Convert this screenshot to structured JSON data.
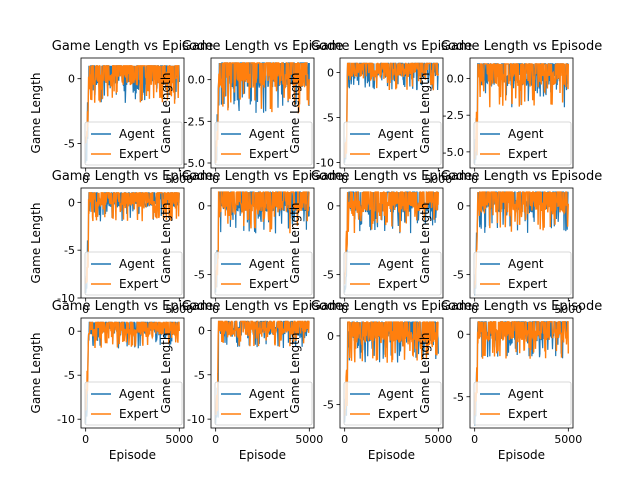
{
  "colors": {
    "agent": "#1f77b4",
    "expert": "#ff7f0e",
    "frame": "#000000",
    "background": "#ffffff"
  },
  "chart_data": [
    {
      "type": "line",
      "title": "Game Length vs Episode",
      "xlabel": "",
      "ylabel": "Game Length",
      "xlim": [
        -250,
        5250
      ],
      "ylim": [
        -6.9,
        1.6
      ],
      "xticks": [
        0,
        5000
      ],
      "yticks": [
        0,
        -5
      ],
      "series": [
        {
          "name": "Agent",
          "role": "agent",
          "y_min": -6.5,
          "y_max": 1,
          "x_range": [
            0,
            5000
          ]
        },
        {
          "name": "Expert",
          "role": "expert",
          "y_min": -5.0,
          "y_max": 1,
          "x_range": [
            0,
            5000
          ]
        }
      ],
      "legend": "lower-right"
    },
    {
      "type": "line",
      "title": "Game Length vs Episode",
      "xlabel": "",
      "ylabel": "Game Length",
      "xlim": [
        -250,
        5250
      ],
      "ylim": [
        -5.3,
        1.3
      ],
      "xticks": [
        0
      ],
      "yticks": [
        0.0,
        -2.5,
        -5.0
      ],
      "series": [
        {
          "name": "Agent",
          "role": "agent",
          "y_min": -5.0,
          "y_max": 1,
          "x_range": [
            0,
            5000
          ]
        },
        {
          "name": "Expert",
          "role": "expert",
          "y_min": -5.0,
          "y_max": 1,
          "x_range": [
            0,
            5000
          ]
        }
      ],
      "legend": "lower-right"
    },
    {
      "type": "line",
      "title": "Game Length vs Episode",
      "xlabel": "",
      "ylabel": "Game Length",
      "xlim": [
        -250,
        5250
      ],
      "ylim": [
        -10.6,
        1.6
      ],
      "xticks": [
        0,
        5000
      ],
      "yticks": [
        0,
        -5,
        -10
      ],
      "series": [
        {
          "name": "Agent",
          "role": "agent",
          "y_min": -10,
          "y_max": 1,
          "x_range": [
            0,
            5000
          ]
        },
        {
          "name": "Expert",
          "role": "expert",
          "y_min": -9.5,
          "y_max": 1,
          "x_range": [
            0,
            5000
          ]
        }
      ],
      "legend": "lower-right"
    },
    {
      "type": "line",
      "title": "Game Length vs Episode",
      "xlabel": "",
      "ylabel": "Game Length",
      "xlim": [
        -250,
        5250
      ],
      "ylim": [
        -6.1,
        1.4
      ],
      "xticks": [
        0
      ],
      "yticks": [
        0.0,
        -2.5,
        -5.0
      ],
      "series": [
        {
          "name": "Agent",
          "role": "agent",
          "y_min": -5.8,
          "y_max": 1,
          "x_range": [
            0,
            5000
          ]
        },
        {
          "name": "Expert",
          "role": "expert",
          "y_min": -5.5,
          "y_max": 1,
          "x_range": [
            0,
            5000
          ]
        }
      ],
      "legend": "lower-right"
    },
    {
      "type": "line",
      "title": "Game Length vs Episode",
      "xlabel": "",
      "ylabel": "Game Length",
      "xlim": [
        -250,
        5250
      ],
      "ylim": [
        -10.0,
        1.5
      ],
      "xticks": [
        0,
        5000
      ],
      "yticks": [
        0,
        -5,
        -10
      ],
      "series": [
        {
          "name": "Agent",
          "role": "agent",
          "y_min": -9.5,
          "y_max": 1,
          "x_range": [
            0,
            5000
          ]
        },
        {
          "name": "Expert",
          "role": "expert",
          "y_min": -8.5,
          "y_max": 1,
          "x_range": [
            0,
            5000
          ]
        }
      ],
      "legend": "lower-right"
    },
    {
      "type": "line",
      "title": "Game Length vs Episode",
      "xlabel": "",
      "ylabel": "Game Length",
      "xlim": [
        -250,
        5250
      ],
      "ylim": [
        -6.7,
        1.3
      ],
      "xticks": [
        0
      ],
      "yticks": [
        0,
        -5
      ],
      "series": [
        {
          "name": "Agent",
          "role": "agent",
          "y_min": -6.3,
          "y_max": 1,
          "x_range": [
            0,
            5000
          ]
        },
        {
          "name": "Expert",
          "role": "expert",
          "y_min": -6.0,
          "y_max": 1,
          "x_range": [
            0,
            5000
          ]
        }
      ],
      "legend": "lower-right"
    },
    {
      "type": "line",
      "title": "Game Length vs Episode",
      "xlabel": "",
      "ylabel": "Game Length",
      "xlim": [
        -250,
        5250
      ],
      "ylim": [
        -6.7,
        1.3
      ],
      "xticks": [
        0
      ],
      "yticks": [
        0,
        -5
      ],
      "series": [
        {
          "name": "Agent",
          "role": "agent",
          "y_min": -6.3,
          "y_max": 1,
          "x_range": [
            0,
            5000
          ]
        },
        {
          "name": "Expert",
          "role": "expert",
          "y_min": -5.7,
          "y_max": 1,
          "x_range": [
            0,
            5000
          ]
        }
      ],
      "legend": "lower-right"
    },
    {
      "type": "line",
      "title": "Game Length vs Episode",
      "xlabel": "",
      "ylabel": "Game Length",
      "xlim": [
        -250,
        5250
      ],
      "ylim": [
        -6.7,
        1.3
      ],
      "xticks": [
        0,
        5000
      ],
      "yticks": [
        0,
        -5
      ],
      "series": [
        {
          "name": "Agent",
          "role": "agent",
          "y_min": -6.5,
          "y_max": 1,
          "x_range": [
            0,
            5000
          ]
        },
        {
          "name": "Expert",
          "role": "expert",
          "y_min": -6.0,
          "y_max": 1,
          "x_range": [
            0,
            5000
          ]
        }
      ],
      "legend": "lower-right"
    },
    {
      "type": "line",
      "title": "Game Length vs Episode",
      "xlabel": "Episode",
      "ylabel": "Game Length",
      "xlim": [
        -250,
        5250
      ],
      "ylim": [
        -11.0,
        1.5
      ],
      "xticks": [
        0,
        5000
      ],
      "yticks": [
        0,
        -5,
        -10
      ],
      "series": [
        {
          "name": "Agent",
          "role": "agent",
          "y_min": -10.5,
          "y_max": 1,
          "x_range": [
            0,
            5000
          ]
        },
        {
          "name": "Expert",
          "role": "expert",
          "y_min": -9.0,
          "y_max": 1,
          "x_range": [
            0,
            5000
          ]
        }
      ],
      "legend": "lower-right"
    },
    {
      "type": "line",
      "title": "Game Length vs Episode",
      "xlabel": "Episode",
      "ylabel": "Game Length",
      "xlim": [
        -250,
        5250
      ],
      "ylim": [
        -11.0,
        1.4
      ],
      "xticks": [
        0,
        5000
      ],
      "yticks": [
        0,
        -5,
        -10
      ],
      "series": [
        {
          "name": "Agent",
          "role": "agent",
          "y_min": -10.5,
          "y_max": 1,
          "x_range": [
            0,
            5000
          ]
        },
        {
          "name": "Expert",
          "role": "expert",
          "y_min": -9.5,
          "y_max": 1,
          "x_range": [
            0,
            5000
          ]
        }
      ],
      "legend": "lower-right"
    },
    {
      "type": "line",
      "title": "Game Length vs Episode",
      "xlabel": "Episode",
      "ylabel": "Game Length",
      "xlim": [
        -250,
        5250
      ],
      "ylim": [
        -6.7,
        1.3
      ],
      "xticks": [
        0,
        5000
      ],
      "yticks": [
        0,
        -5
      ],
      "series": [
        {
          "name": "Agent",
          "role": "agent",
          "y_min": -6.3,
          "y_max": 1,
          "x_range": [
            0,
            5000
          ]
        },
        {
          "name": "Expert",
          "role": "expert",
          "y_min": -5.8,
          "y_max": 1,
          "x_range": [
            0,
            5000
          ]
        }
      ],
      "legend": "lower-right"
    },
    {
      "type": "line",
      "title": "Game Length vs Episode",
      "xlabel": "Episode",
      "ylabel": "Game Length",
      "xlim": [
        -250,
        5250
      ],
      "ylim": [
        -7.5,
        1.3
      ],
      "xticks": [
        0,
        5000
      ],
      "yticks": [
        0,
        -5
      ],
      "series": [
        {
          "name": "Agent",
          "role": "agent",
          "y_min": -7.3,
          "y_max": 1,
          "x_range": [
            0,
            5000
          ]
        },
        {
          "name": "Expert",
          "role": "expert",
          "y_min": -6.5,
          "y_max": 1,
          "x_range": [
            0,
            5000
          ]
        }
      ],
      "legend": "lower-right"
    }
  ]
}
